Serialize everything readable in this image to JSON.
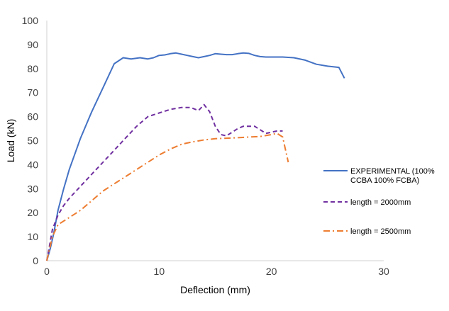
{
  "chart_data": {
    "type": "line",
    "title": "",
    "xlabel": "Deflection (mm)",
    "ylabel": "Load (kN)",
    "xlim": [
      0,
      30
    ],
    "ylim": [
      0,
      100
    ],
    "xticks": [
      "0",
      "10",
      "20",
      "30"
    ],
    "yticks": [
      "0",
      "10",
      "20",
      "30",
      "40",
      "50",
      "60",
      "70",
      "80",
      "90",
      "100"
    ],
    "grid": false,
    "legend_position": "right",
    "series": [
      {
        "name": "EXPERIMENTAL (100% CCBA 100% FCBA)",
        "legend_lines": [
          "EXPERIMENTAL (100%",
          "CCBA 100% FCBA)"
        ],
        "color": "#4472C4",
        "dash": "solid",
        "x": [
          0,
          0.3,
          0.6,
          1.0,
          1.5,
          2.0,
          3.0,
          4.0,
          5.0,
          6.0,
          6.8,
          7.5,
          8.3,
          9.0,
          9.5,
          10.0,
          10.5,
          11.0,
          11.5,
          12.0,
          12.5,
          13.0,
          13.5,
          14.0,
          14.5,
          15.0,
          15.5,
          16.0,
          16.5,
          17.0,
          17.5,
          18.0,
          18.5,
          19.0,
          19.5,
          20.0,
          21.0,
          22.0,
          23.0,
          24.0,
          25.0,
          26.0,
          26.5
        ],
        "y": [
          0,
          5,
          11,
          21,
          30,
          38,
          51,
          62,
          72,
          82,
          84.5,
          84,
          84.5,
          84,
          84.5,
          85.5,
          85.7,
          86.2,
          86.5,
          86,
          85.5,
          85,
          84.5,
          85,
          85.5,
          86.2,
          86,
          85.8,
          85.8,
          86.2,
          86.5,
          86.3,
          85.5,
          85,
          84.8,
          84.8,
          84.8,
          84.5,
          83.5,
          81.8,
          81,
          80.5,
          76
        ]
      },
      {
        "name": "length = 2000mm",
        "legend_lines": [
          "length = 2000mm"
        ],
        "color": "#7030A0",
        "dash": "dashed",
        "x": [
          0,
          0.5,
          1.0,
          1.5,
          2.0,
          3.0,
          4.0,
          5.0,
          6.0,
          7.0,
          8.0,
          9.0,
          10.0,
          11.0,
          12.0,
          12.8,
          13.5,
          14.0,
          14.5,
          15.0,
          15.5,
          16.0,
          16.5,
          17.0,
          17.5,
          18.0,
          18.5,
          19.0,
          19.5,
          20.0,
          20.5,
          21.0
        ],
        "y": [
          0,
          13,
          19,
          23,
          26,
          31,
          36,
          41,
          46,
          51,
          56,
          60,
          61.5,
          63,
          63.8,
          63.8,
          62.5,
          65,
          62,
          56,
          52.5,
          52,
          53.5,
          55,
          56,
          56,
          56,
          54.5,
          53,
          53.5,
          54,
          54
        ]
      },
      {
        "name": "length = 2500mm",
        "legend_lines": [
          "length = 2500mm"
        ],
        "color": "#ED7D31",
        "dash": "dashdot",
        "x": [
          0,
          0.5,
          1.0,
          2.0,
          3.0,
          4.0,
          5.0,
          6.0,
          7.0,
          8.0,
          9.0,
          10.0,
          11.0,
          12.0,
          13.0,
          14.0,
          15.0,
          16.0,
          17.0,
          18.0,
          19.0,
          20.0,
          20.5,
          21.0,
          21.5
        ],
        "y": [
          0,
          10,
          15,
          18,
          21,
          25,
          29,
          32,
          35,
          38,
          41,
          44,
          46.5,
          48.5,
          49.5,
          50.3,
          50.8,
          51,
          51.2,
          51.5,
          51.7,
          52.5,
          53,
          51.5,
          41
        ]
      }
    ]
  }
}
